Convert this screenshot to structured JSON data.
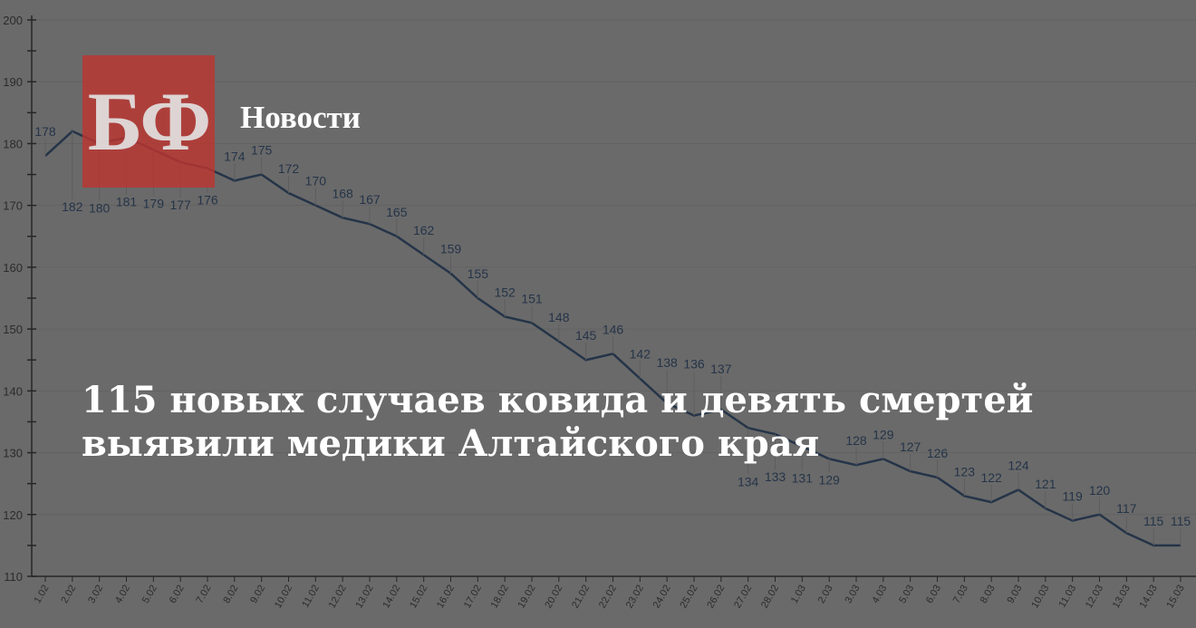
{
  "brand": {
    "logo_text": "БФ",
    "section": "Новости",
    "accent": "#be3430"
  },
  "headline": "115 новых случаев ковида и девять смертей выявили медики Алтайского края",
  "chart_data": {
    "type": "line",
    "categories": [
      "1.02",
      "2.02",
      "3.02",
      "4.02",
      "5.02",
      "6.02",
      "7.02",
      "8.02",
      "9.02",
      "10.02",
      "11.02",
      "12.02",
      "13.02",
      "14.02",
      "15.02",
      "16.02",
      "17.02",
      "18.02",
      "19.02",
      "20.02",
      "21.02",
      "22.02",
      "23.02",
      "24.02",
      "25.02",
      "26.02",
      "27.02",
      "28.02",
      "1.03",
      "2.03",
      "3.03",
      "4.03",
      "5.03",
      "6.03",
      "7.03",
      "8.03",
      "9.03",
      "10.03",
      "11.03",
      "12.03",
      "13.03",
      "14.03",
      "15.03"
    ],
    "values": [
      178,
      182,
      180,
      181,
      179,
      177,
      176,
      174,
      175,
      172,
      170,
      168,
      167,
      165,
      162,
      159,
      155,
      152,
      151,
      148,
      145,
      146,
      142,
      138,
      136,
      137,
      134,
      133,
      131,
      129,
      128,
      129,
      127,
      126,
      123,
      122,
      124,
      121,
      119,
      120,
      117,
      115,
      115
    ],
    "ylim": [
      110,
      200
    ],
    "yticks": [
      110,
      120,
      130,
      140,
      150,
      160,
      170,
      180,
      190,
      200
    ],
    "grid": true,
    "line_color": "#1f4e8c"
  }
}
